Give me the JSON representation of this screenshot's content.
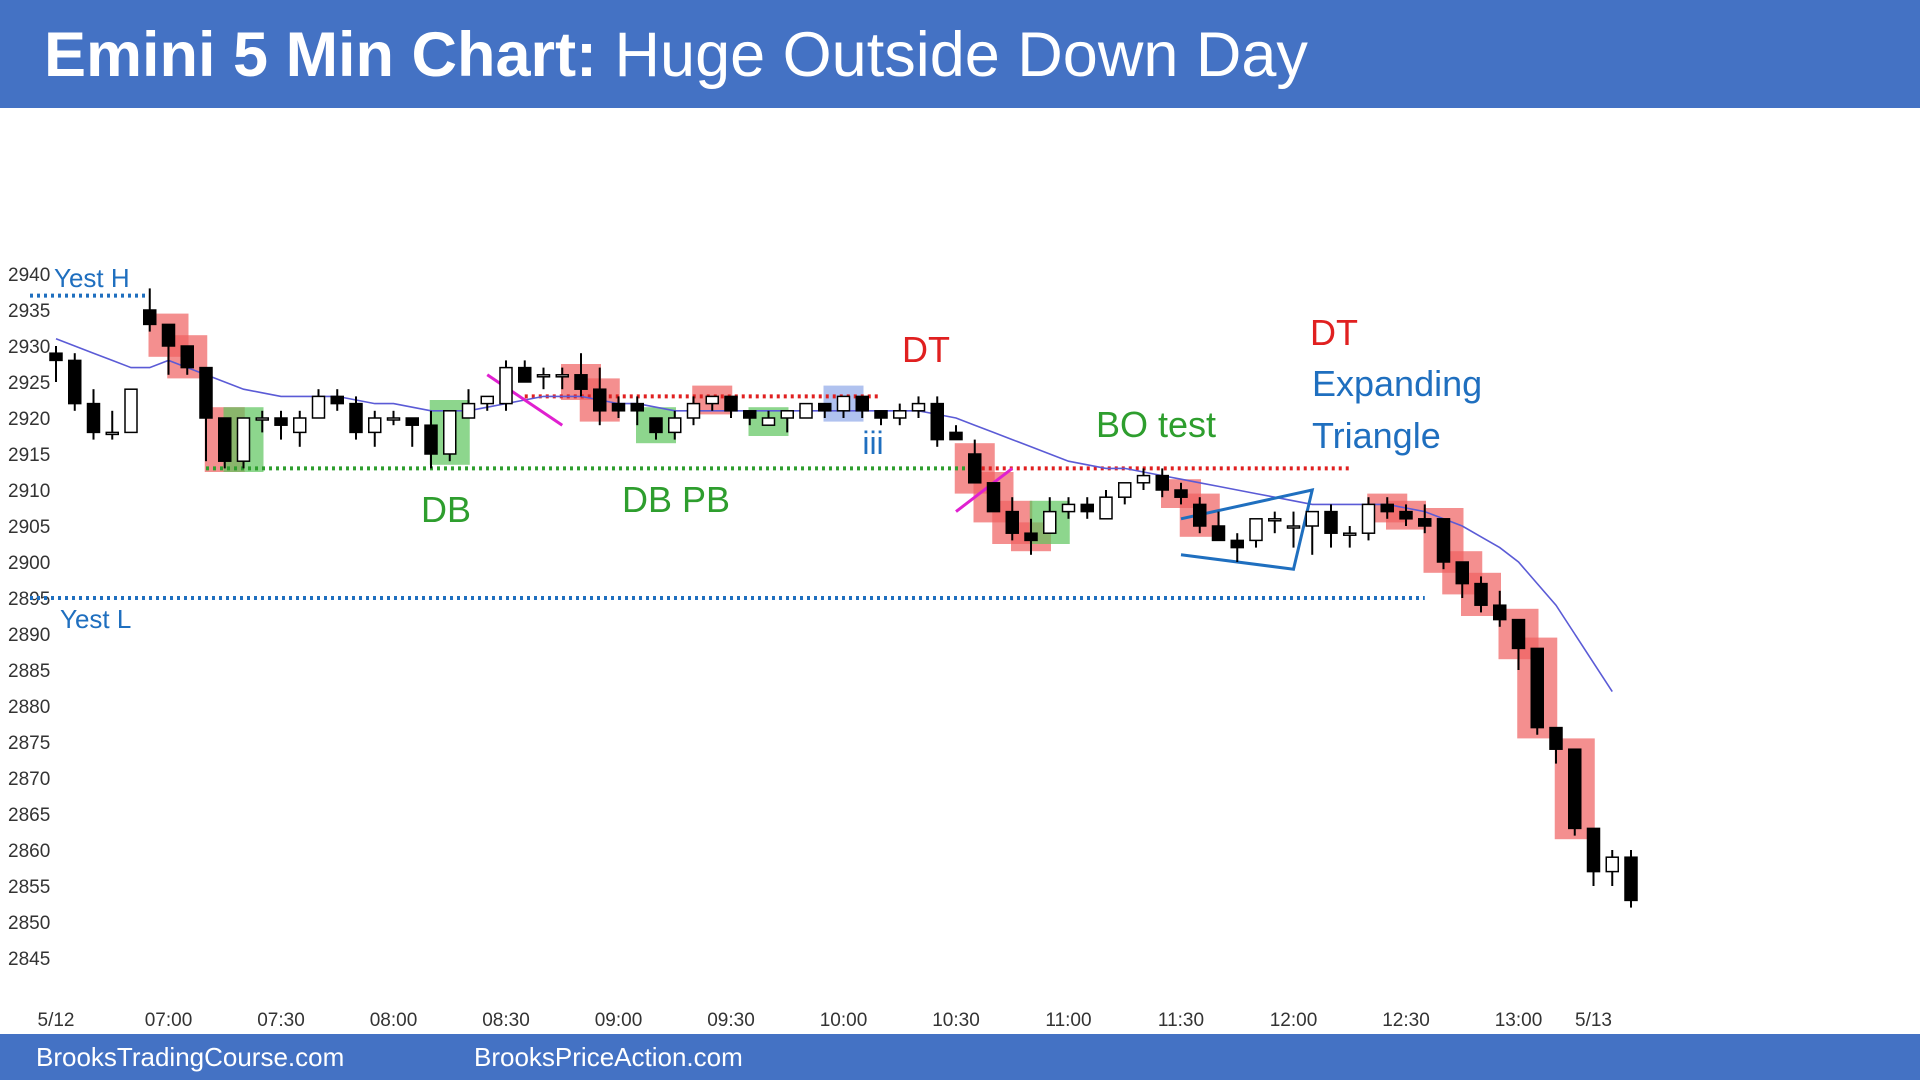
{
  "header": {
    "title_bold": "Emini 5 Min Chart:",
    "title_rest": " Huge Outside Down Day"
  },
  "footer": {
    "link_left": "BrooksTradingCourse.com",
    "link_right": "BrooksPriceAction.com"
  },
  "colors": {
    "header_bg": "#4472c4",
    "bull_signal": "#5cc45c",
    "bear_signal": "#f06060",
    "ema": "#5b5bd6",
    "support_line": "#2e9e2e",
    "resistance_line": "#e02020",
    "yesterday_lines": "#1f6fbf",
    "annotation_green": "#2e9e2e",
    "annotation_red": "#e02020",
    "annotation_blue": "#1f6fbf",
    "wedge_magenta": "#e020d0"
  },
  "chart_data": {
    "type": "candlestick",
    "title": "Emini 5 Min Chart: Huge Outside Down Day",
    "ylim": [
      2845,
      2940
    ],
    "y_ticks": [
      2940,
      2935,
      2930,
      2925,
      2920,
      2915,
      2910,
      2905,
      2900,
      2895,
      2890,
      2885,
      2880,
      2875,
      2870,
      2865,
      2860,
      2855,
      2850,
      2845
    ],
    "x_ticks": [
      {
        "label": "5/12",
        "bar": 0
      },
      {
        "label": "07:00",
        "bar": 6
      },
      {
        "label": "07:30",
        "bar": 12
      },
      {
        "label": "08:00",
        "bar": 18
      },
      {
        "label": "08:30",
        "bar": 24
      },
      {
        "label": "09:00",
        "bar": 30
      },
      {
        "label": "09:30",
        "bar": 36
      },
      {
        "label": "10:00",
        "bar": 42
      },
      {
        "label": "10:30",
        "bar": 48
      },
      {
        "label": "11:00",
        "bar": 54
      },
      {
        "label": "11:30",
        "bar": 60
      },
      {
        "label": "12:00",
        "bar": 66
      },
      {
        "label": "12:30",
        "bar": 72
      },
      {
        "label": "13:00",
        "bar": 78
      },
      {
        "label": "5/13",
        "bar": 82
      }
    ],
    "candles": [
      {
        "o": 2929,
        "h": 2930,
        "l": 2925,
        "c": 2928
      },
      {
        "o": 2928,
        "h": 2929,
        "l": 2921,
        "c": 2922
      },
      {
        "o": 2922,
        "h": 2924,
        "l": 2917,
        "c": 2918
      },
      {
        "o": 2918,
        "h": 2921,
        "l": 2917,
        "c": 2918
      },
      {
        "o": 2918,
        "h": 2924,
        "l": 2918,
        "c": 2924
      },
      {
        "o": 2935,
        "h": 2938,
        "l": 2932,
        "c": 2933
      },
      {
        "o": 2933,
        "h": 2933,
        "l": 2926,
        "c": 2930
      },
      {
        "o": 2930,
        "h": 2930,
        "l": 2926,
        "c": 2927
      },
      {
        "o": 2927,
        "h": 2927,
        "l": 2914,
        "c": 2920
      },
      {
        "o": 2920,
        "h": 2920,
        "l": 2913,
        "c": 2914
      },
      {
        "o": 2914,
        "h": 2920,
        "l": 2913,
        "c": 2920
      },
      {
        "o": 2920,
        "h": 2921,
        "l": 2918,
        "c": 2920
      },
      {
        "o": 2920,
        "h": 2921,
        "l": 2917,
        "c": 2919
      },
      {
        "o": 2918,
        "h": 2921,
        "l": 2916,
        "c": 2920
      },
      {
        "o": 2920,
        "h": 2924,
        "l": 2920,
        "c": 2923
      },
      {
        "o": 2923,
        "h": 2924,
        "l": 2921,
        "c": 2922
      },
      {
        "o": 2922,
        "h": 2923,
        "l": 2917,
        "c": 2918
      },
      {
        "o": 2918,
        "h": 2921,
        "l": 2916,
        "c": 2920
      },
      {
        "o": 2920,
        "h": 2921,
        "l": 2919,
        "c": 2920
      },
      {
        "o": 2920,
        "h": 2920,
        "l": 2916,
        "c": 2919
      },
      {
        "o": 2919,
        "h": 2921,
        "l": 2913,
        "c": 2915
      },
      {
        "o": 2915,
        "h": 2921,
        "l": 2914,
        "c": 2921
      },
      {
        "o": 2920,
        "h": 2924,
        "l": 2920,
        "c": 2922
      },
      {
        "o": 2922,
        "h": 2923,
        "l": 2921,
        "c": 2923
      },
      {
        "o": 2922,
        "h": 2928,
        "l": 2921,
        "c": 2927
      },
      {
        "o": 2927,
        "h": 2928,
        "l": 2925,
        "c": 2925
      },
      {
        "o": 2926,
        "h": 2927,
        "l": 2924,
        "c": 2926
      },
      {
        "o": 2926,
        "h": 2927,
        "l": 2924,
        "c": 2926
      },
      {
        "o": 2926,
        "h": 2929,
        "l": 2923,
        "c": 2924
      },
      {
        "o": 2924,
        "h": 2927,
        "l": 2919,
        "c": 2921
      },
      {
        "o": 2922,
        "h": 2923,
        "l": 2920,
        "c": 2921
      },
      {
        "o": 2922,
        "h": 2923,
        "l": 2919,
        "c": 2921
      },
      {
        "o": 2920,
        "h": 2920,
        "l": 2917,
        "c": 2918
      },
      {
        "o": 2918,
        "h": 2921,
        "l": 2917,
        "c": 2920
      },
      {
        "o": 2920,
        "h": 2923,
        "l": 2919,
        "c": 2922
      },
      {
        "o": 2922,
        "h": 2923,
        "l": 2921,
        "c": 2923
      },
      {
        "o": 2923,
        "h": 2923,
        "l": 2920,
        "c": 2921
      },
      {
        "o": 2921,
        "h": 2921,
        "l": 2919,
        "c": 2920
      },
      {
        "o": 2919,
        "h": 2921,
        "l": 2919,
        "c": 2920
      },
      {
        "o": 2920,
        "h": 2921,
        "l": 2918,
        "c": 2921
      },
      {
        "o": 2920,
        "h": 2922,
        "l": 2920,
        "c": 2922
      },
      {
        "o": 2922,
        "h": 2922,
        "l": 2920,
        "c": 2921
      },
      {
        "o": 2921,
        "h": 2923,
        "l": 2920,
        "c": 2923
      },
      {
        "o": 2923,
        "h": 2923,
        "l": 2920,
        "c": 2921
      },
      {
        "o": 2921,
        "h": 2921,
        "l": 2919,
        "c": 2920
      },
      {
        "o": 2920,
        "h": 2922,
        "l": 2919,
        "c": 2921
      },
      {
        "o": 2921,
        "h": 2923,
        "l": 2920,
        "c": 2922
      },
      {
        "o": 2922,
        "h": 2923,
        "l": 2916,
        "c": 2917
      },
      {
        "o": 2918,
        "h": 2919,
        "l": 2917,
        "c": 2917
      },
      {
        "o": 2915,
        "h": 2917,
        "l": 2911,
        "c": 2911
      },
      {
        "o": 2911,
        "h": 2911,
        "l": 2907,
        "c": 2907
      },
      {
        "o": 2907,
        "h": 2909,
        "l": 2903,
        "c": 2904
      },
      {
        "o": 2904,
        "h": 2906,
        "l": 2901,
        "c": 2903
      },
      {
        "o": 2904,
        "h": 2909,
        "l": 2904,
        "c": 2907
      },
      {
        "o": 2907,
        "h": 2909,
        "l": 2906,
        "c": 2908
      },
      {
        "o": 2908,
        "h": 2909,
        "l": 2906,
        "c": 2907
      },
      {
        "o": 2906,
        "h": 2910,
        "l": 2906,
        "c": 2909
      },
      {
        "o": 2909,
        "h": 2911,
        "l": 2908,
        "c": 2911
      },
      {
        "o": 2911,
        "h": 2913,
        "l": 2910,
        "c": 2912
      },
      {
        "o": 2912,
        "h": 2913,
        "l": 2909,
        "c": 2910
      },
      {
        "o": 2910,
        "h": 2911,
        "l": 2908,
        "c": 2909
      },
      {
        "o": 2908,
        "h": 2909,
        "l": 2904,
        "c": 2905
      },
      {
        "o": 2905,
        "h": 2907,
        "l": 2903,
        "c": 2903
      },
      {
        "o": 2903,
        "h": 2904,
        "l": 2900,
        "c": 2902
      },
      {
        "o": 2903,
        "h": 2906,
        "l": 2902,
        "c": 2906
      },
      {
        "o": 2906,
        "h": 2907,
        "l": 2904,
        "c": 2906
      },
      {
        "o": 2905,
        "h": 2907,
        "l": 2902,
        "c": 2905
      },
      {
        "o": 2905,
        "h": 2907,
        "l": 2901,
        "c": 2907
      },
      {
        "o": 2907,
        "h": 2908,
        "l": 2902,
        "c": 2904
      },
      {
        "o": 2904,
        "h": 2905,
        "l": 2902,
        "c": 2904
      },
      {
        "o": 2904,
        "h": 2909,
        "l": 2903,
        "c": 2908
      },
      {
        "o": 2908,
        "h": 2909,
        "l": 2906,
        "c": 2907
      },
      {
        "o": 2907,
        "h": 2908,
        "l": 2905,
        "c": 2906
      },
      {
        "o": 2906,
        "h": 2908,
        "l": 2904,
        "c": 2905
      },
      {
        "o": 2906,
        "h": 2906,
        "l": 2899,
        "c": 2900
      },
      {
        "o": 2900,
        "h": 2900,
        "l": 2895,
        "c": 2897
      },
      {
        "o": 2897,
        "h": 2898,
        "l": 2893,
        "c": 2894
      },
      {
        "o": 2894,
        "h": 2896,
        "l": 2891,
        "c": 2892
      },
      {
        "o": 2892,
        "h": 2892,
        "l": 2885,
        "c": 2888
      },
      {
        "o": 2888,
        "h": 2888,
        "l": 2876,
        "c": 2877
      },
      {
        "o": 2877,
        "h": 2877,
        "l": 2872,
        "c": 2874
      },
      {
        "o": 2874,
        "h": 2874,
        "l": 2862,
        "c": 2863
      },
      {
        "o": 2863,
        "h": 2863,
        "l": 2855,
        "c": 2857
      },
      {
        "o": 2857,
        "h": 2860,
        "l": 2855,
        "c": 2859
      },
      {
        "o": 2859,
        "h": 2860,
        "l": 2852,
        "c": 2853
      }
    ],
    "ema": [
      2931,
      2930,
      2929,
      2928,
      2927,
      2927,
      2928,
      2927,
      2926,
      2925,
      2924,
      2923.5,
      2923,
      2923,
      2923,
      2923,
      2922.5,
      2922,
      2922,
      2921.5,
      2921,
      2921,
      2921,
      2921.5,
      2922,
      2922.5,
      2923,
      2923,
      2923,
      2922.5,
      2922,
      2922,
      2921.5,
      2921,
      2921,
      2921,
      2921,
      2921,
      2921,
      2921,
      2921,
      2921,
      2921,
      2921,
      2921,
      2921,
      2921,
      2920.5,
      2920,
      2919,
      2918,
      2917,
      2916,
      2915,
      2914,
      2913.5,
      2913,
      2913,
      2912.5,
      2912,
      2911.5,
      2911,
      2910.5,
      2910,
      2909.5,
      2909,
      2908.5,
      2908,
      2908,
      2908,
      2908,
      2908,
      2907.5,
      2907,
      2906,
      2905,
      2903.5,
      2902,
      2900,
      2897,
      2894,
      2890,
      2886,
      2882
    ],
    "levels": [
      {
        "label": "Yest H",
        "value": 2937
      },
      {
        "label": "Yest L",
        "value": 2895
      },
      {
        "label": "",
        "value": 2913
      },
      {
        "label": "",
        "value": 2913
      },
      {
        "label": "",
        "value": 2923
      }
    ],
    "annotations": [
      {
        "text": "DB",
        "color": "green"
      },
      {
        "text": "DB PB",
        "color": "green"
      },
      {
        "text": "iii",
        "color": "blue"
      },
      {
        "text": "DT",
        "color": "red"
      },
      {
        "text": "BO test",
        "color": "green"
      },
      {
        "text": "DT",
        "color": "red"
      },
      {
        "text": "Expanding",
        "color": "blue"
      },
      {
        "text": "Triangle",
        "color": "blue"
      }
    ],
    "signal_boxes": [
      {
        "bar": 6,
        "kind": "bear"
      },
      {
        "bar": 7,
        "kind": "bear"
      },
      {
        "bar": 9,
        "kind": "bear"
      },
      {
        "bar": 10,
        "kind": "bull"
      },
      {
        "bar": 21,
        "kind": "bull"
      },
      {
        "bar": 28,
        "kind": "bear"
      },
      {
        "bar": 29,
        "kind": "bear"
      },
      {
        "bar": 32,
        "kind": "bull"
      },
      {
        "bar": 35,
        "kind": "bear"
      },
      {
        "bar": 38,
        "kind": "bull"
      },
      {
        "bar": 42,
        "kind": "blue"
      },
      {
        "bar": 49,
        "kind": "bear"
      },
      {
        "bar": 50,
        "kind": "bear"
      },
      {
        "bar": 51,
        "kind": "bear"
      },
      {
        "bar": 52,
        "kind": "bear"
      },
      {
        "bar": 53,
        "kind": "bull"
      },
      {
        "bar": 60,
        "kind": "bear"
      },
      {
        "bar": 61,
        "kind": "bear"
      },
      {
        "bar": 71,
        "kind": "bear"
      },
      {
        "bar": 72,
        "kind": "bear"
      },
      {
        "bar": 74,
        "kind": "bear"
      },
      {
        "bar": 75,
        "kind": "bear"
      },
      {
        "bar": 76,
        "kind": "bear"
      },
      {
        "bar": 78,
        "kind": "bear"
      },
      {
        "bar": 79,
        "kind": "bear"
      },
      {
        "bar": 81,
        "kind": "bear"
      }
    ]
  }
}
